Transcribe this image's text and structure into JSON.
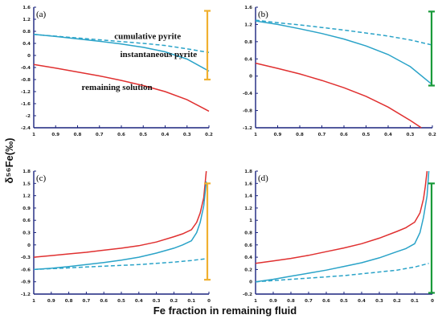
{
  "figure": {
    "xlabel": "Fe fraction in remaining fluid",
    "ylabel": "δ⁵⁶Fe(‰)",
    "colors": {
      "remaining": "#e03030",
      "instantaneous": "#2aa3c8",
      "cumulative": "#2aa3c8",
      "bar_orange": "#f0b030",
      "bar_green": "#1a9a3a",
      "axis": "#1a237e"
    }
  },
  "chart_data": [
    {
      "panel": "(a)",
      "type": "line",
      "xlim": [
        1.0,
        0.2
      ],
      "ylim": [
        -2.4,
        1.6
      ],
      "x_ticks": [
        "1",
        "0.9",
        "0.8",
        "0.7",
        "0.6",
        "0.5",
        "0.4",
        "0.3",
        "0.2"
      ],
      "x_tick_values": [
        1.0,
        0.9,
        0.8,
        0.7,
        0.6,
        0.5,
        0.4,
        0.3,
        0.2
      ],
      "y_ticks": [
        "1.6",
        "1.2",
        "0.8",
        "0.4",
        "0",
        "-0.4",
        "-0.8",
        "-1.2",
        "-1.6",
        "-2",
        "-2.4"
      ],
      "y_tick_values": [
        1.6,
        1.2,
        0.8,
        0.4,
        0,
        -0.4,
        -0.8,
        -1.2,
        -1.6,
        -2.0,
        -2.4
      ],
      "annotations": [
        {
          "text": "cumulative pyrite",
          "x": 0.48,
          "y": 0.55
        },
        {
          "text": "instantaneous pyrite",
          "x": 0.43,
          "y": -0.05
        },
        {
          "text": "remaining solution",
          "x": 0.62,
          "y": -1.15
        }
      ],
      "series": [
        {
          "id": "remaining",
          "style": "solid",
          "x": [
            1.0,
            0.9,
            0.8,
            0.7,
            0.6,
            0.5,
            0.4,
            0.3,
            0.2
          ],
          "y": [
            -0.3,
            -0.42,
            -0.55,
            -0.68,
            -0.83,
            -1.0,
            -1.2,
            -1.47,
            -1.85
          ]
        },
        {
          "id": "instantaneous",
          "style": "solid",
          "x": [
            1.0,
            0.9,
            0.8,
            0.7,
            0.6,
            0.5,
            0.4,
            0.3,
            0.2
          ],
          "y": [
            0.7,
            0.63,
            0.55,
            0.47,
            0.38,
            0.27,
            0.12,
            -0.12,
            -0.52
          ]
        },
        {
          "id": "cumulative",
          "style": "dashed",
          "x": [
            1.0,
            0.9,
            0.8,
            0.7,
            0.6,
            0.5,
            0.4,
            0.3,
            0.2
          ],
          "y": [
            0.7,
            0.64,
            0.58,
            0.52,
            0.46,
            0.4,
            0.33,
            0.22,
            0.1
          ]
        }
      ],
      "range_bar": {
        "color": "orange",
        "y": [
          -0.8,
          1.48
        ]
      }
    },
    {
      "panel": "(b)",
      "type": "line",
      "xlim": [
        1.0,
        0.2
      ],
      "ylim": [
        -1.2,
        1.6
      ],
      "x_ticks": [
        "1",
        "0.9",
        "0.8",
        "0.7",
        "0.6",
        "0.5",
        "0.4",
        "0.3",
        "0.2"
      ],
      "x_tick_values": [
        1.0,
        0.9,
        0.8,
        0.7,
        0.6,
        0.5,
        0.4,
        0.3,
        0.2
      ],
      "y_ticks": [
        "1.6",
        "1.2",
        "0.8",
        "0.4",
        "0",
        "-0.4",
        "-0.8",
        "-1.2"
      ],
      "y_tick_values": [
        1.6,
        1.2,
        0.8,
        0.4,
        0,
        -0.4,
        -0.8,
        -1.2
      ],
      "series": [
        {
          "id": "remaining",
          "style": "solid",
          "x": [
            1.0,
            0.9,
            0.8,
            0.7,
            0.6,
            0.5,
            0.4,
            0.3,
            0.25
          ],
          "y": [
            0.3,
            0.18,
            0.05,
            -0.1,
            -0.27,
            -0.47,
            -0.72,
            -1.03,
            -1.2
          ]
        },
        {
          "id": "instantaneous",
          "style": "solid",
          "x": [
            1.0,
            0.9,
            0.8,
            0.7,
            0.6,
            0.5,
            0.4,
            0.3,
            0.2
          ],
          "y": [
            1.28,
            1.2,
            1.1,
            0.99,
            0.86,
            0.7,
            0.5,
            0.22,
            -0.2
          ]
        },
        {
          "id": "cumulative",
          "style": "dashed",
          "x": [
            1.0,
            0.9,
            0.8,
            0.7,
            0.6,
            0.5,
            0.4,
            0.3,
            0.2
          ],
          "y": [
            1.3,
            1.24,
            1.19,
            1.13,
            1.07,
            1.0,
            0.93,
            0.84,
            0.72
          ]
        }
      ],
      "range_bar": {
        "color": "green",
        "y": [
          -0.22,
          1.5
        ]
      }
    },
    {
      "panel": "(c)",
      "type": "line",
      "xlim": [
        1.0,
        0.0
      ],
      "ylim": [
        -1.2,
        1.8
      ],
      "x_ticks": [
        "1",
        "0.9",
        "0.8",
        "0.7",
        "0.6",
        "0.5",
        "0.4",
        "0.3",
        "0.2",
        "0.1",
        "0"
      ],
      "x_tick_values": [
        1.0,
        0.9,
        0.8,
        0.7,
        0.6,
        0.5,
        0.4,
        0.3,
        0.2,
        0.1,
        0.0
      ],
      "y_ticks": [
        "1.8",
        "1.5",
        "1.2",
        "0.9",
        "0.6",
        "0.3",
        "0",
        "-0.3",
        "-0.6",
        "-0.9",
        "-1.2"
      ],
      "y_tick_values": [
        1.8,
        1.5,
        1.2,
        0.9,
        0.6,
        0.3,
        0,
        -0.3,
        -0.6,
        -0.9,
        -1.2
      ],
      "series": [
        {
          "id": "remaining",
          "style": "solid",
          "x": [
            1.0,
            0.9,
            0.8,
            0.7,
            0.6,
            0.5,
            0.4,
            0.3,
            0.2,
            0.15,
            0.1,
            0.07,
            0.05,
            0.03,
            0.015
          ],
          "y": [
            -0.3,
            -0.26,
            -0.22,
            -0.18,
            -0.13,
            -0.08,
            -0.02,
            0.07,
            0.2,
            0.27,
            0.37,
            0.55,
            0.78,
            1.15,
            1.8
          ]
        },
        {
          "id": "instantaneous",
          "style": "solid",
          "x": [
            1.0,
            0.9,
            0.8,
            0.7,
            0.6,
            0.5,
            0.4,
            0.3,
            0.2,
            0.15,
            0.1,
            0.07,
            0.05,
            0.03,
            0.015
          ],
          "y": [
            -0.6,
            -0.57,
            -0.53,
            -0.48,
            -0.43,
            -0.37,
            -0.3,
            -0.2,
            -0.08,
            0.0,
            0.1,
            0.3,
            0.55,
            0.95,
            1.55
          ]
        },
        {
          "id": "cumulative",
          "style": "dashed",
          "x": [
            1.0,
            0.9,
            0.8,
            0.7,
            0.6,
            0.5,
            0.4,
            0.3,
            0.2,
            0.1,
            0.02
          ],
          "y": [
            -0.6,
            -0.58,
            -0.56,
            -0.54,
            -0.52,
            -0.5,
            -0.48,
            -0.45,
            -0.42,
            -0.38,
            -0.34
          ]
        }
      ],
      "range_bar": {
        "color": "orange",
        "y": [
          -0.85,
          1.5
        ]
      }
    },
    {
      "panel": "(d)",
      "type": "line",
      "xlim": [
        1.0,
        0.0
      ],
      "ylim": [
        -0.2,
        1.8
      ],
      "x_ticks": [
        "1",
        "0.9",
        "0.8",
        "0.7",
        "0.6",
        "0.5",
        "0.4",
        "0.3",
        "0.2",
        "0.1",
        "0"
      ],
      "x_tick_values": [
        1.0,
        0.9,
        0.8,
        0.7,
        0.6,
        0.5,
        0.4,
        0.3,
        0.2,
        0.1,
        0.0
      ],
      "y_ticks": [
        "1.8",
        "1.6",
        "1.4",
        "1.2",
        "1",
        "0.8",
        "0.6",
        "0.4",
        "0.2",
        "0",
        "-0.2"
      ],
      "y_tick_values": [
        1.8,
        1.6,
        1.4,
        1.2,
        1.0,
        0.8,
        0.6,
        0.4,
        0.2,
        0.0,
        -0.2
      ],
      "series": [
        {
          "id": "remaining",
          "style": "solid",
          "x": [
            1.0,
            0.9,
            0.8,
            0.7,
            0.6,
            0.5,
            0.4,
            0.3,
            0.2,
            0.15,
            0.1,
            0.07,
            0.05,
            0.04,
            0.03
          ],
          "y": [
            0.3,
            0.34,
            0.38,
            0.43,
            0.49,
            0.55,
            0.62,
            0.71,
            0.82,
            0.88,
            0.97,
            1.12,
            1.35,
            1.55,
            1.8
          ]
        },
        {
          "id": "instantaneous",
          "style": "solid",
          "x": [
            1.0,
            0.9,
            0.8,
            0.7,
            0.6,
            0.5,
            0.4,
            0.3,
            0.2,
            0.15,
            0.1,
            0.07,
            0.05,
            0.03,
            0.02
          ],
          "y": [
            0.0,
            0.04,
            0.09,
            0.14,
            0.19,
            0.25,
            0.31,
            0.39,
            0.49,
            0.54,
            0.62,
            0.8,
            1.05,
            1.4,
            1.8
          ]
        },
        {
          "id": "cumulative",
          "style": "dashed",
          "x": [
            1.0,
            0.9,
            0.8,
            0.7,
            0.6,
            0.5,
            0.4,
            0.3,
            0.2,
            0.1,
            0.02
          ],
          "y": [
            0.0,
            0.02,
            0.04,
            0.06,
            0.08,
            0.1,
            0.13,
            0.16,
            0.19,
            0.24,
            0.3
          ]
        }
      ],
      "range_bar": {
        "color": "green",
        "y": [
          -0.18,
          1.6
        ]
      }
    }
  ]
}
